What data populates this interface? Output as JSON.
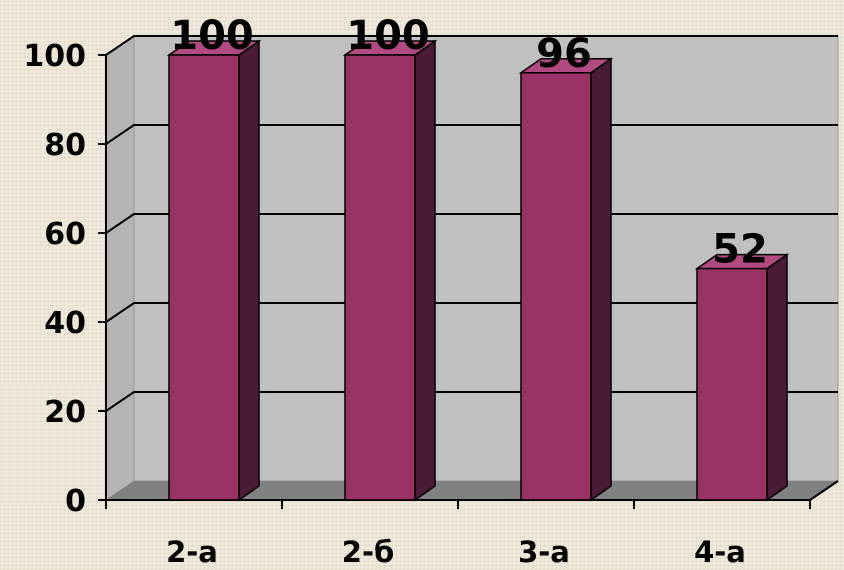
{
  "chart_data": {
    "type": "bar",
    "style": "3d-column",
    "categories": [
      "2-а",
      "2-б",
      "3-а",
      "4-а"
    ],
    "values": [
      100,
      100,
      96,
      52
    ],
    "data_labels": [
      "100",
      "100",
      "96",
      "52"
    ],
    "ylim": [
      0,
      100
    ],
    "yticks": [
      0,
      20,
      40,
      60,
      80,
      100
    ],
    "ytick_labels": [
      "0",
      "20",
      "40",
      "60",
      "80",
      "100"
    ],
    "title": "",
    "xlabel": "",
    "ylabel": "",
    "grid": true,
    "legend": "none",
    "colors": {
      "bar_front": "#993366",
      "bar_side": "#4a1a36",
      "bar_top": "#b04a80",
      "wall": "#c0c0c0",
      "floor": "#808080",
      "gridline": "#000000"
    }
  }
}
